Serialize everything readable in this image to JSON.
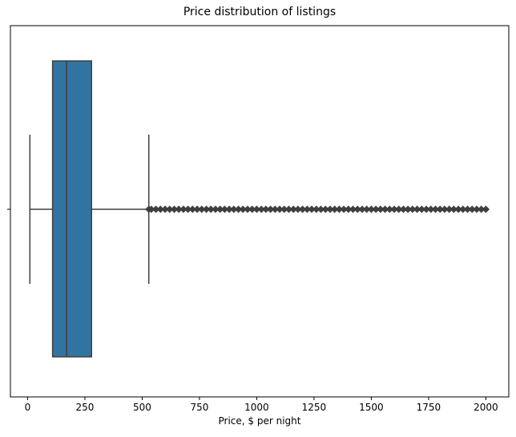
{
  "chart_data": {
    "type": "box",
    "title": "Price distribution of listings",
    "xlabel": "Price, $ per night",
    "ylabel": "",
    "orientation": "horizontal",
    "xlim": [
      -75,
      2100
    ],
    "xticks": [
      0,
      250,
      500,
      750,
      1000,
      1250,
      1500,
      1750,
      2000
    ],
    "grid": false,
    "legend": "none",
    "box": {
      "whisker_low": 10,
      "q1": 109,
      "median": 170,
      "q3": 279,
      "whisker_high": 529,
      "fill_color": "#3274a1",
      "line_color": "#3f3f3f",
      "outlier_min": 529,
      "outlier_max": 2000,
      "outliers": [
        529,
        540,
        560,
        580,
        600,
        620,
        640,
        660,
        680,
        700,
        720,
        740,
        760,
        780,
        800,
        820,
        840,
        860,
        880,
        900,
        920,
        940,
        960,
        980,
        1000,
        1020,
        1040,
        1060,
        1080,
        1100,
        1120,
        1140,
        1160,
        1180,
        1200,
        1220,
        1240,
        1260,
        1280,
        1300,
        1320,
        1340,
        1360,
        1380,
        1400,
        1420,
        1440,
        1460,
        1480,
        1500,
        1520,
        1540,
        1560,
        1580,
        1600,
        1620,
        1640,
        1660,
        1680,
        1700,
        1720,
        1740,
        1760,
        1780,
        1800,
        1820,
        1840,
        1860,
        1880,
        1900,
        1920,
        1940,
        1960,
        1980,
        2000
      ]
    }
  }
}
